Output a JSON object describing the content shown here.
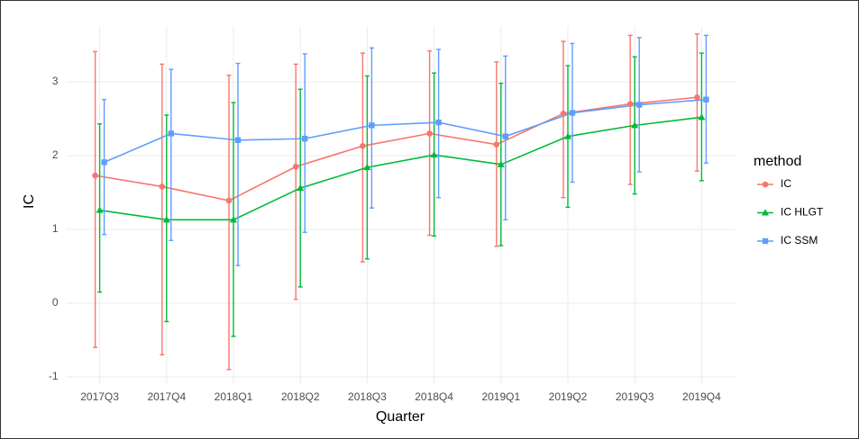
{
  "chart_data": {
    "type": "line",
    "x_label": "Quarter",
    "y_label": "IC",
    "legend_title": "method",
    "legend_position": "right",
    "categories": [
      "2017Q3",
      "2017Q4",
      "2018Q1",
      "2018Q2",
      "2018Q3",
      "2018Q4",
      "2019Q1",
      "2019Q2",
      "2019Q3",
      "2019Q4"
    ],
    "ylim": [
      -1.11,
      3.75
    ],
    "yticks": [
      -1,
      0,
      1,
      2,
      3
    ],
    "grid": true,
    "series": [
      {
        "name": "IC",
        "color": "#F8766D",
        "shape": "circle",
        "values": [
          1.73,
          1.58,
          1.39,
          1.85,
          2.13,
          2.3,
          2.15,
          2.57,
          2.7,
          2.79
        ],
        "lower": [
          -0.6,
          -0.7,
          -0.9,
          0.05,
          0.56,
          0.92,
          0.77,
          1.43,
          1.61,
          1.79
        ],
        "upper": [
          3.41,
          3.24,
          3.09,
          3.24,
          3.39,
          3.42,
          3.27,
          3.55,
          3.63,
          3.65
        ]
      },
      {
        "name": "IC HLGT",
        "color": "#00BA38",
        "shape": "triangle",
        "values": [
          1.26,
          1.13,
          1.13,
          1.56,
          1.84,
          2.01,
          1.88,
          2.26,
          2.41,
          2.52
        ],
        "lower": [
          0.15,
          -0.25,
          -0.45,
          0.22,
          0.6,
          0.91,
          0.78,
          1.3,
          1.48,
          1.66
        ],
        "upper": [
          2.43,
          2.55,
          2.72,
          2.9,
          3.08,
          3.12,
          2.98,
          3.22,
          3.34,
          3.39
        ]
      },
      {
        "name": "IC SSM",
        "color": "#619CFF",
        "shape": "square",
        "values": [
          1.91,
          2.3,
          2.21,
          2.23,
          2.41,
          2.45,
          2.26,
          2.58,
          2.69,
          2.76
        ],
        "lower": [
          0.93,
          0.85,
          0.51,
          0.96,
          1.29,
          1.43,
          1.13,
          1.64,
          1.78,
          1.9
        ],
        "upper": [
          2.76,
          3.17,
          3.25,
          3.38,
          3.46,
          3.44,
          3.35,
          3.52,
          3.6,
          3.63
        ]
      }
    ]
  }
}
